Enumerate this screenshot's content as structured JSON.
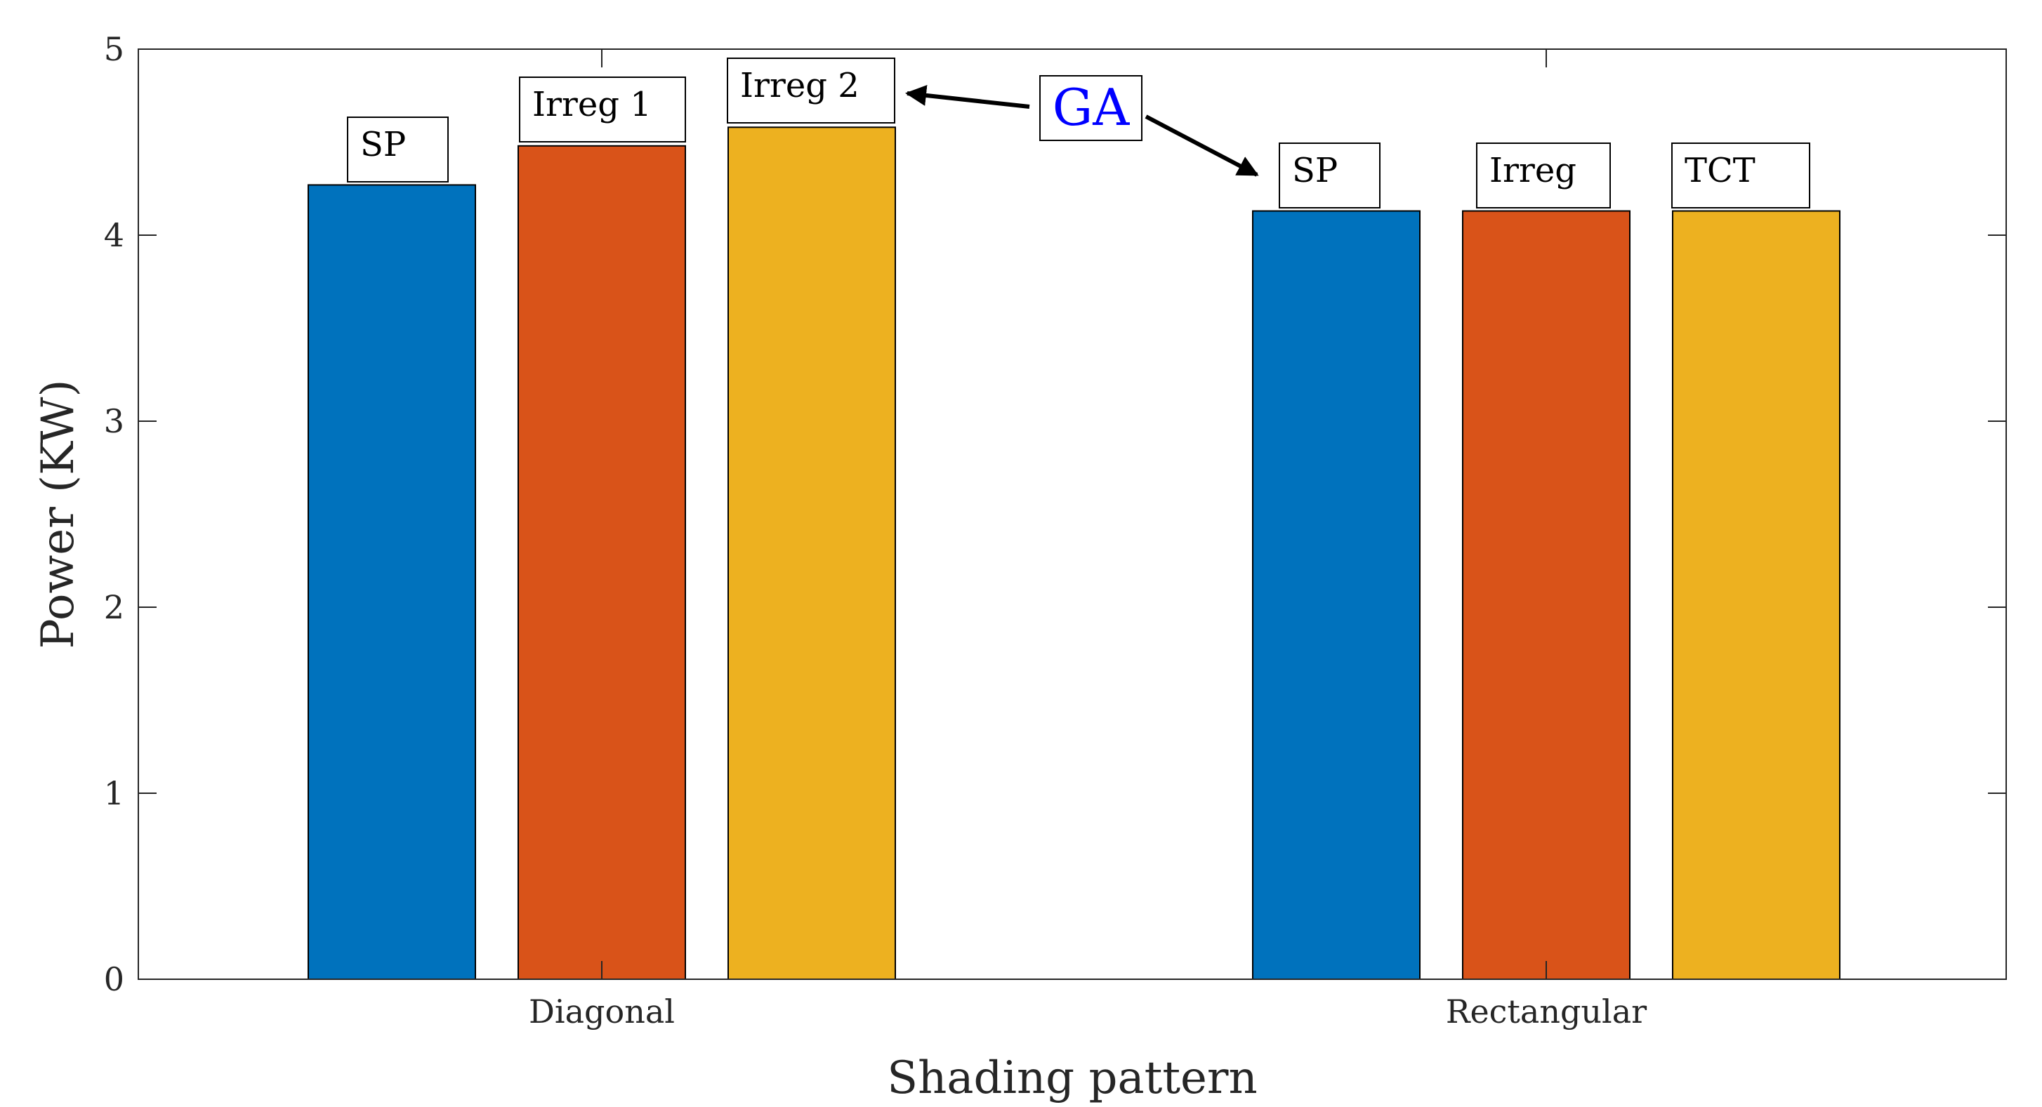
{
  "chart_data": {
    "type": "bar",
    "title": "",
    "xlabel": "Shading pattern",
    "ylabel": "Power (KW)",
    "ylim": [
      0,
      5
    ],
    "yticks": [
      0,
      1,
      2,
      3,
      4,
      5
    ],
    "grid": false,
    "categories": [
      "Diagonal",
      "Rectangular"
    ],
    "series": [
      {
        "name": "Series 1",
        "color": "#0072BD",
        "values": [
          4.27,
          4.13
        ]
      },
      {
        "name": "Series 2",
        "color": "#D95319",
        "values": [
          4.48,
          4.13
        ]
      },
      {
        "name": "Series 3",
        "color": "#EDB120",
        "values": [
          4.58,
          4.13
        ]
      }
    ],
    "bar_labels": [
      [
        "SP",
        "Irreg 1",
        "Irreg 2"
      ],
      [
        "SP",
        "Irreg",
        "TCT"
      ]
    ],
    "annotation": {
      "text": "GA",
      "color": "#0000FF",
      "arrows_to": [
        "Diagonal / Irreg 2",
        "Rectangular / SP"
      ]
    }
  }
}
